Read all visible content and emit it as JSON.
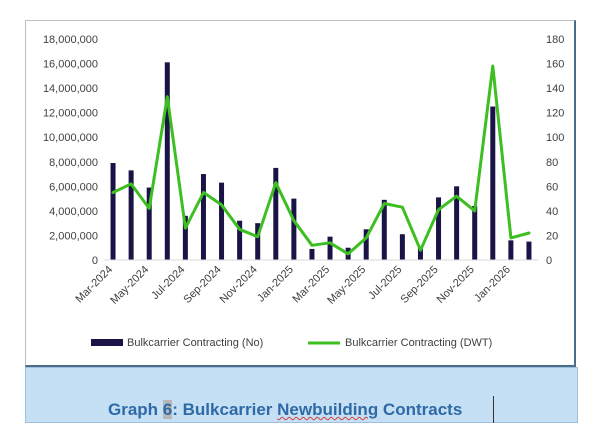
{
  "chart_data": {
    "type": "bar+line",
    "categories": [
      "Mar-2024",
      "Apr-2024",
      "May-2024",
      "Jun-2024",
      "Jul-2024",
      "Aug-2024",
      "Sep-2024",
      "Oct-2024",
      "Nov-2024",
      "Dec-2024",
      "Jan-2025",
      "Feb-2025",
      "Mar-2025",
      "Apr-2025",
      "May-2025",
      "Jun-2025",
      "Jul-2025",
      "Aug-2025",
      "Sep-2025",
      "Oct-2025",
      "Nov-2025",
      "Dec-2025",
      "Jan-2026",
      "Feb-2026"
    ],
    "x_tick_labels": [
      "Mar-2024",
      "May-2024",
      "Jul-2024",
      "Sep-2024",
      "Nov-2024",
      "Jan-2025",
      "Mar-2025",
      "May-2025",
      "Jul-2025",
      "Sep-2025",
      "Nov-2025",
      "Jan-2026"
    ],
    "series": [
      {
        "name": "Bulkcarrier Contracting (No)",
        "type": "bar",
        "axis": "right",
        "color": "#1a1446",
        "values": [
          79,
          73,
          59,
          161,
          36,
          70,
          63,
          32,
          30,
          75,
          50,
          9,
          19,
          10,
          25,
          49,
          21,
          10,
          51,
          60,
          44,
          125,
          16,
          15
        ]
      },
      {
        "name": "Bulkcarrier Contracting (DWT)",
        "type": "line",
        "axis": "left",
        "color": "#3dbf22",
        "values": [
          5500000,
          6200000,
          4200000,
          13300000,
          2600000,
          5500000,
          4500000,
          2500000,
          1900000,
          6300000,
          3200000,
          1200000,
          1400000,
          500000,
          1800000,
          4600000,
          4300000,
          800000,
          4100000,
          5200000,
          4000000,
          15800000,
          1800000,
          2200000
        ]
      }
    ],
    "y_left": {
      "min": 0,
      "max": 18000000,
      "step": 2000000,
      "tick_labels": [
        "0",
        "2,000,000",
        "4,000,000",
        "6,000,000",
        "8,000,000",
        "10,000,000",
        "12,000,000",
        "14,000,000",
        "16,000,000",
        "18,000,000"
      ]
    },
    "y_right": {
      "min": 0,
      "max": 180,
      "step": 20,
      "tick_labels": [
        "0",
        "20",
        "40",
        "60",
        "80",
        "100",
        "120",
        "140",
        "160",
        "180"
      ]
    },
    "grid": false,
    "legend_position": "bottom"
  },
  "caption": {
    "prefix": "Graph ",
    "number": "6",
    "title": ": Bulkcarrier ",
    "underlined": "Newbuilding",
    "suffix": " Contracts"
  }
}
